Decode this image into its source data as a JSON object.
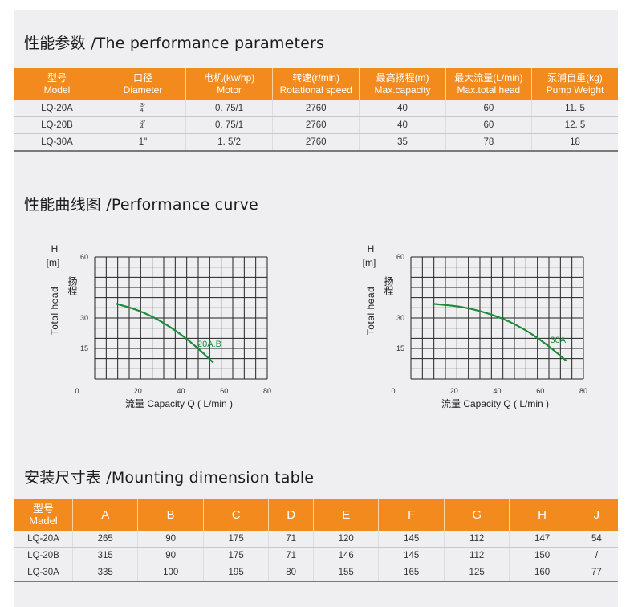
{
  "performance": {
    "title": "性能参数 /The performance parameters",
    "headers": [
      {
        "cn": "型号",
        "en": "Model"
      },
      {
        "cn": "口径",
        "en": "Diameter"
      },
      {
        "cn": "电机(kw/hp)",
        "en": "Motor"
      },
      {
        "cn": "转速(r/min)",
        "en": "Rotational speed"
      },
      {
        "cn": "最高扬程(m)",
        "en": "Max.capacity"
      },
      {
        "cn": "最大流量(L/min)",
        "en": "Max.total head"
      },
      {
        "cn": "泵浦自重(kg)",
        "en": "Pump Weight"
      }
    ],
    "rows": [
      {
        "model": "LQ-20A",
        "diameter_num": "3",
        "diameter_den": "4",
        "diameter_mark": "\"",
        "motor": "0. 75/1",
        "speed": "2760",
        "head": "40",
        "flow": "60",
        "weight": "11. 5"
      },
      {
        "model": "LQ-20B",
        "diameter_num": "3",
        "diameter_den": "4",
        "diameter_mark": "\"",
        "motor": "0. 75/1",
        "speed": "2760",
        "head": "40",
        "flow": "60",
        "weight": "12. 5"
      },
      {
        "model": "LQ-30A",
        "diameter": "1\"",
        "motor": "1. 5/2",
        "speed": "2760",
        "head": "35",
        "flow": "78",
        "weight": "18"
      }
    ]
  },
  "curves": {
    "title": "性能曲线图 /Performance curve",
    "colors": {
      "curve": "#1e8c3a",
      "grid": "#222222"
    },
    "chart_data": [
      {
        "type": "line",
        "ytitle": "H",
        "yunit": "[m]",
        "ylabel_en": "Total head",
        "ylabel_cn": "扬程",
        "xlabel": "流量 Capacity   Q ( L/min )",
        "xlim": [
          0,
          80
        ],
        "ylim": [
          0,
          60
        ],
        "xticks": [
          "0",
          "20",
          "40",
          "60",
          "80"
        ],
        "yticks": [
          "60",
          "30",
          "15"
        ],
        "series": [
          {
            "name": "20A.B",
            "x": [
              10,
              20,
              30,
              40,
              48,
              55
            ],
            "y": [
              37,
              34,
              29,
              22,
              15,
              8
            ]
          }
        ]
      },
      {
        "type": "line",
        "ytitle": "H",
        "yunit": "[m]",
        "ylabel_en": "Total head",
        "ylabel_cn": "扬程",
        "xlabel": "流量 Capacity   Q ( L/min )",
        "xlim": [
          0,
          80
        ],
        "ylim": [
          0,
          60
        ],
        "xticks": [
          "0",
          "20",
          "40",
          "60",
          "80"
        ],
        "yticks": [
          "60",
          "30",
          "15"
        ],
        "series": [
          {
            "name": "30A",
            "x": [
              10,
              25,
              40,
              52,
              63,
              72
            ],
            "y": [
              37,
              35.5,
              31,
              25,
              17,
              9
            ]
          }
        ]
      }
    ]
  },
  "mounting": {
    "title": "安装尺寸表 /Mounting dimension table",
    "model_cn": "型号",
    "model_en": "Madel",
    "columns": [
      "A",
      "B",
      "C",
      "D",
      "E",
      "F",
      "G",
      "H",
      "J"
    ],
    "rows": [
      {
        "model": "LQ-20A",
        "values": [
          "265",
          "90",
          "175",
          "71",
          "120",
          "145",
          "112",
          "147",
          "54"
        ]
      },
      {
        "model": "LQ-20B",
        "values": [
          "315",
          "90",
          "175",
          "71",
          "146",
          "145",
          "112",
          "150",
          "/"
        ]
      },
      {
        "model": "LQ-30A",
        "values": [
          "335",
          "100",
          "195",
          "80",
          "155",
          "165",
          "125",
          "160",
          "77"
        ]
      }
    ]
  }
}
